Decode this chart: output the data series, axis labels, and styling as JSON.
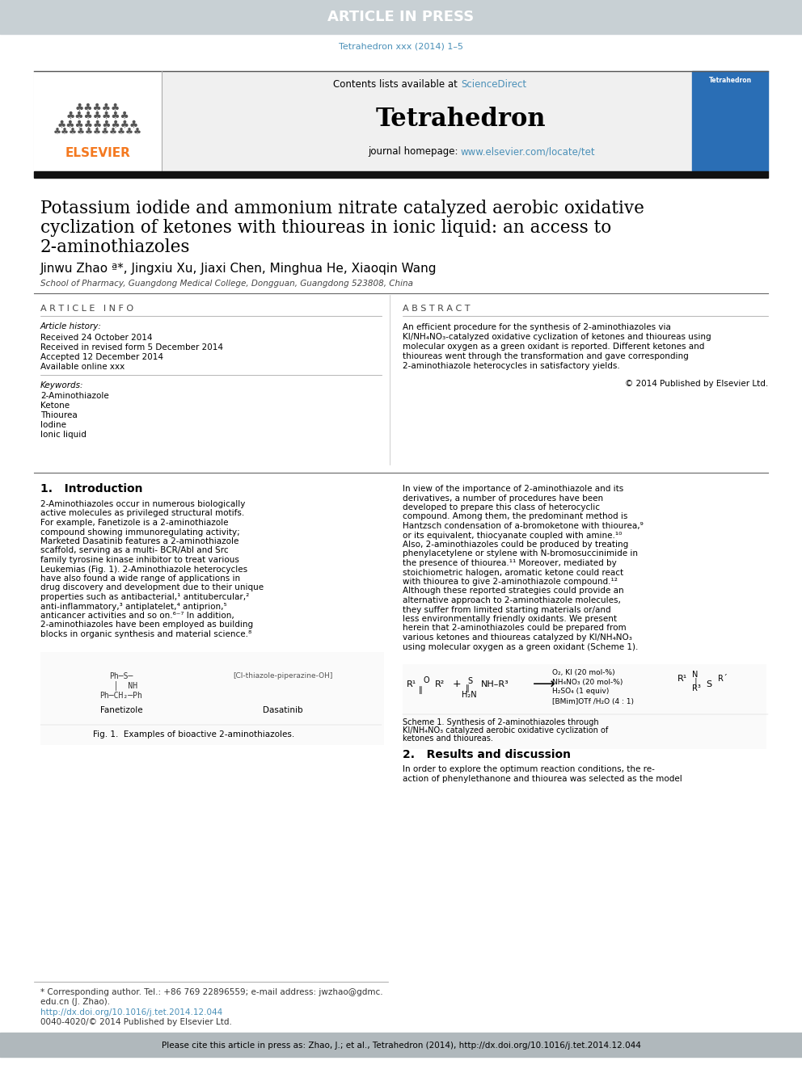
{
  "article_in_press_text": "ARTICLE IN PRESS",
  "article_in_press_bg": "#c8d0d4",
  "article_in_press_text_color": "#ffffff",
  "journal_ref": "Tetrahedron xxx (2014) 1–5",
  "journal_ref_color": "#4a90b8",
  "contents_text": "Contents lists available at ",
  "science_direct": "ScienceDirect",
  "science_direct_color": "#4a90b8",
  "journal_name": "Tetrahedron",
  "journal_homepage_text": "journal homepage: ",
  "journal_homepage_url": "www.elsevier.com/locate/tet",
  "journal_homepage_url_color": "#4a90b8",
  "header_bg": "#f0f0f0",
  "title_line1": "Potassium iodide and ammonium nitrate catalyzed aerobic oxidative",
  "title_line2": "cyclization of ketones with thioureas in ionic liquid: an access to",
  "title_line3": "2-aminothiazoles",
  "authors": "Jinwu Zhao ª*, Jingxiu Xu, Jiaxi Chen, Minghua He, Xiaoqin Wang",
  "affiliation": "School of Pharmacy, Guangdong Medical College, Dongguan, Guangdong 523808, China",
  "article_info_header": "A R T I C L E   I N F O",
  "article_history_header": "Article history:",
  "received_date": "Received 24 October 2014",
  "revised_date": "Received in revised form 5 December 2014",
  "accepted_date": "Accepted 12 December 2014",
  "available": "Available online xxx",
  "keywords_header": "Keywords:",
  "keywords": [
    "2-Aminothiazole",
    "Ketone",
    "Thiourea",
    "Iodine",
    "Ionic liquid"
  ],
  "abstract_header": "A B S T R A C T",
  "abstract_text": "An efficient procedure for the synthesis of 2-aminothiazoles via KI/NH₄NO₃-catalyzed oxidative cyclization of ketones and thioureas using molecular oxygen as a green oxidant is reported. Different ketones and thioureas went through the transformation and gave corresponding 2-aminothiazole heterocycles in satisfactory yields.",
  "copyright_text": "© 2014 Published by Elsevier Ltd.",
  "intro_header": "1.   Introduction",
  "intro_text_left": "2-Aminothiazoles occur in numerous biologically active molecules as privileged structural motifs. For example, Fanetizole is a 2-aminothiazole compound showing immunoregulating activity; Marketed Dasatinib features a 2-aminothiazole scaffold, serving as a multi- BCR/Abl and Src family tyrosine kinase inhibitor to treat various Leukemias (Fig. 1). 2-Aminothiazole heterocycles have also found a wide range of applications in drug discovery and development due to their unique properties such as antibacterial,¹ antitubercular,² anti-inflammatory,³ antiplatelet,⁴ antiprion,⁵ anticancer activities and so on.⁶⁻⁷ In addition, 2-aminothiazoles have been employed as building blocks in organic synthesis and material science.⁸",
  "intro_text_right": "In view of the importance of 2-aminothiazole and its derivatives, a number of procedures have been developed to prepare this class of heterocyclic compound. Among them, the predominant method is Hantzsch condensation of a-bromoketone with thiourea,⁹ or its equivalent, thiocyanate coupled with amine.¹⁰ Also, 2-aminothiazoles could be produced by treating phenylacetylene or stylene with N-bromosuccinimide in the presence of thiourea.¹¹ Moreover, mediated by stoichiometric halogen, aromatic ketone could react with thiourea to give 2-aminothiazole compound.¹² Although these reported strategies could provide an alternative approach to 2-aminothiazole molecules, they suffer from limited starting materials or/and less environmentally friendly oxidants. We present herein that 2-aminothiazoles could be prepared from various ketones and thioureas catalyzed by KI/NH₄NO₃ using molecular oxygen as a green oxidant (Scheme 1).",
  "fig1_caption": "Fig. 1.  Examples of bioactive 2-aminothiazoles.",
  "fanetizole_label": "Fanetizole",
  "dasatinib_label": "Dasatinib",
  "scheme1_caption": "Scheme 1. Synthesis of 2-aminothiazoles through KI/NH₄NO₃ catalyzed aerobic oxidative cyclization of ketones and thioureas.",
  "results_header": "2.   Results and discussion",
  "results_text": "In order to explore the optimum reaction conditions, the re-\naction of phenylethanone and thiourea was selected as the model",
  "corresponding_author_note1": "* Corresponding author. Tel.: +86 769 22896559; e-mail address: jwzhao@gdmc.",
  "corresponding_author_note2": "edu.cn (J. Zhao).",
  "doi_text": "http://dx.doi.org/10.1016/j.tet.2014.12.044",
  "doi_color": "#4a90b8",
  "issn_text": "0040-4020/© 2014 Published by Elsevier Ltd.",
  "footer_text": "Please cite this article in press as: Zhao, J.; et al., Tetrahedron (2014), http://dx.doi.org/10.1016/j.tet.2014.12.044",
  "footer_bg": "#b0b8bc",
  "elsevier_orange": "#f47920",
  "cover_blue": "#2a6eb5",
  "scheme_conditions_line1": "O₂, KI (20 mol-%)",
  "scheme_conditions_line2": "NH₄NO₃ (20 mol-%)",
  "scheme_conditions_line3": "H₂SO₄ (1 equiv)",
  "scheme_conditions_line4": "[BMim]OTf /H₂O (4 : 1)"
}
